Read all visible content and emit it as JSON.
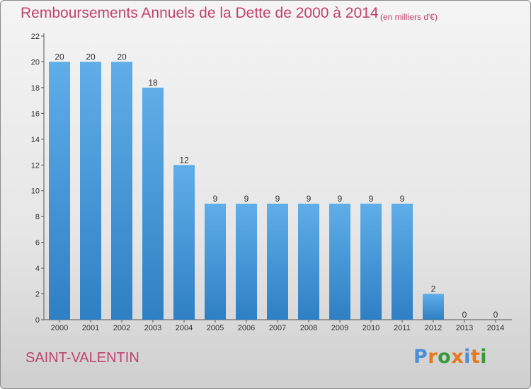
{
  "title": "Remboursements Annuels de la Dette de 2000 à 2014",
  "unit": "(en milliers d'€)",
  "commune": "SAINT-VALENTIN",
  "logo": {
    "text": "Proxiti",
    "colors": [
      "#4a8fd8",
      "#e6781e",
      "#3a9a3a",
      "#e6781e",
      "#4a8fd8",
      "#e6781e",
      "#3a9a3a"
    ]
  },
  "colors": {
    "bar_top": "#5faee9",
    "bar_bottom": "#2f7fc4",
    "axis": "#555555",
    "text": "#333333",
    "accent": "#c0426e"
  },
  "chart_data": {
    "type": "bar",
    "categories": [
      "2000",
      "2001",
      "2002",
      "2003",
      "2004",
      "2005",
      "2006",
      "2007",
      "2008",
      "2009",
      "2010",
      "2011",
      "2012",
      "2013",
      "2014"
    ],
    "values": [
      20,
      20,
      20,
      18,
      12,
      9,
      9,
      9,
      9,
      9,
      9,
      9,
      2,
      0,
      0
    ],
    "title": "Remboursements Annuels de la Dette de 2000 à 2014",
    "xlabel": "",
    "ylabel": "",
    "ylim": [
      0,
      22
    ],
    "yticks": [
      0,
      2,
      4,
      6,
      8,
      10,
      12,
      14,
      16,
      18,
      20,
      22
    ],
    "grid": false,
    "data_labels": true
  }
}
